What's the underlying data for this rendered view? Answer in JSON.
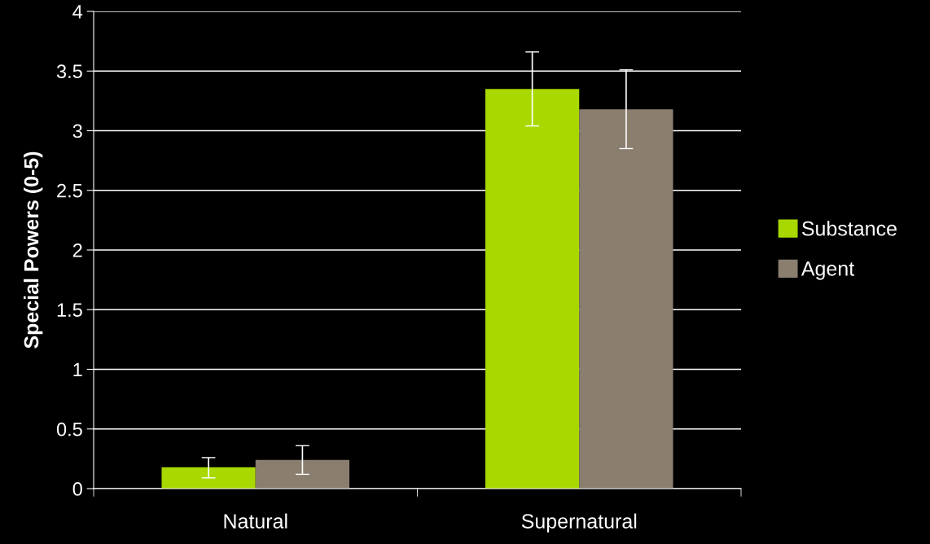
{
  "chart_data": {
    "type": "bar",
    "ylabel": "Special Powers (0-5)",
    "categories": [
      "Natural",
      "Supernatural"
    ],
    "series": [
      {
        "name": "Substance",
        "color": "#a8d800",
        "values": [
          0.18,
          3.35
        ],
        "errors": [
          [
            0.09,
            0.26
          ],
          [
            3.04,
            3.66
          ]
        ]
      },
      {
        "name": "Agent",
        "color": "#8a7e6e",
        "values": [
          0.24,
          3.18
        ],
        "errors": [
          [
            0.12,
            0.36
          ],
          [
            2.85,
            3.51
          ]
        ]
      }
    ],
    "ylim": [
      0,
      4
    ],
    "yticks": [
      0,
      0.5,
      1,
      1.5,
      2,
      2.5,
      3,
      3.5,
      4
    ],
    "grid": "y",
    "legend": "right"
  }
}
